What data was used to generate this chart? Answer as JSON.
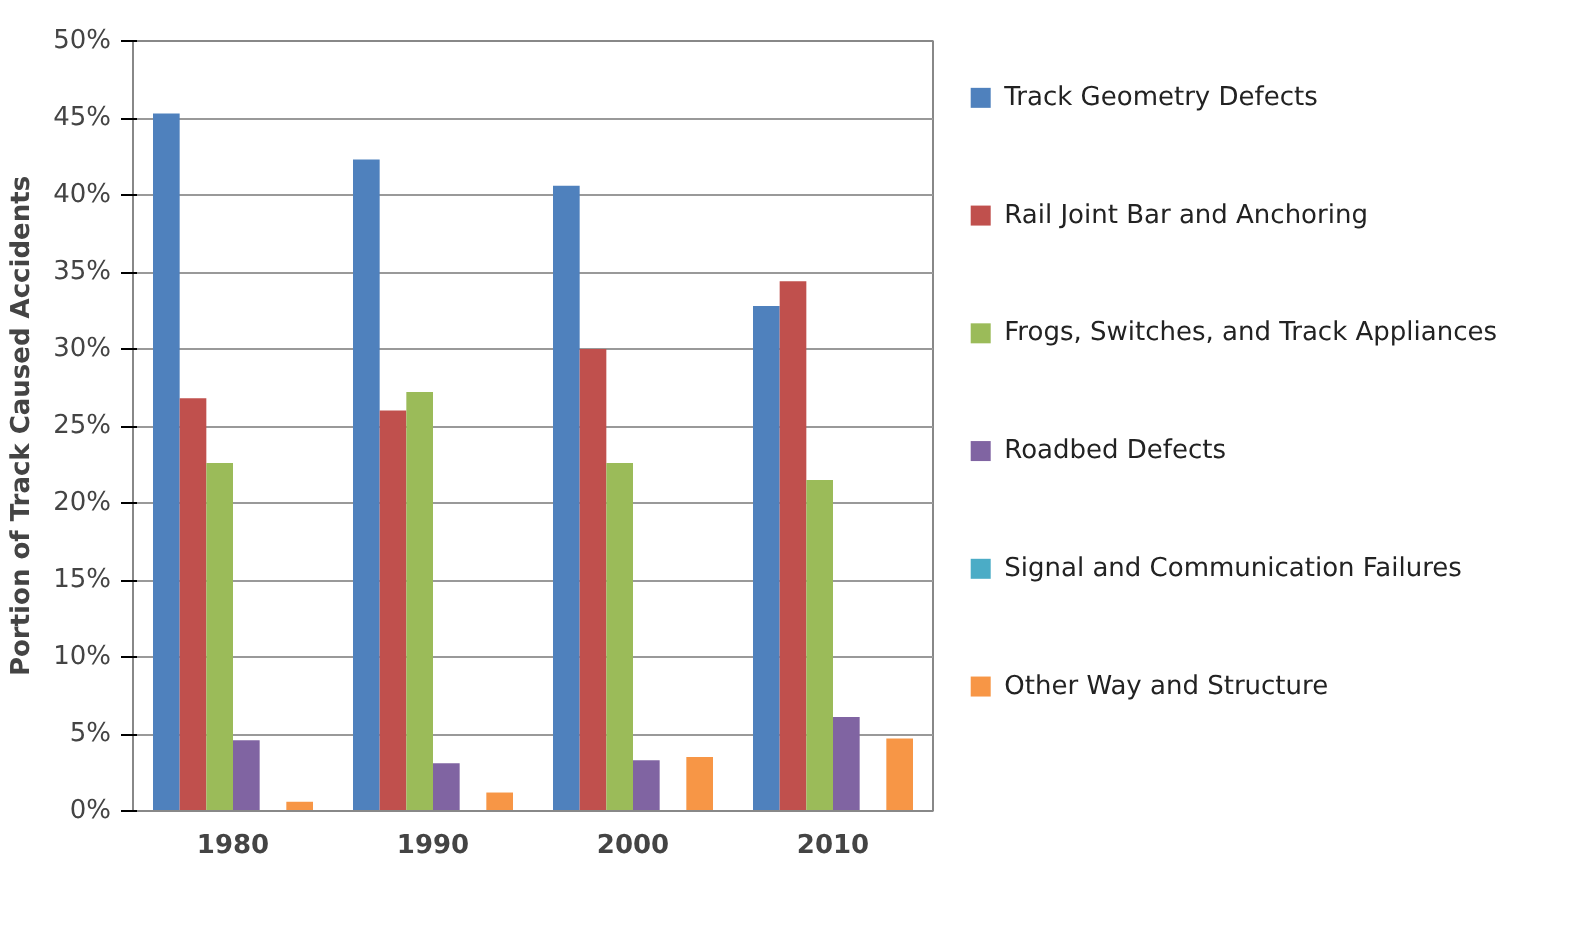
{
  "chart_data": {
    "type": "bar",
    "ylabel": "Portion of Track Caused Accidents",
    "categories": [
      "1980",
      "1990",
      "2000",
      "2010"
    ],
    "series": [
      {
        "name": "Track Geometry Defects",
        "color": "#4f81bd",
        "values": [
          45.3,
          42.3,
          40.6,
          32.8
        ]
      },
      {
        "name": "Rail Joint Bar and Anchoring",
        "color": "#c0504d",
        "values": [
          26.8,
          26.0,
          30.0,
          34.4
        ]
      },
      {
        "name": "Frogs, Switches, and Track Appliances",
        "color": "#9bbb59",
        "values": [
          22.6,
          27.2,
          22.6,
          21.5
        ]
      },
      {
        "name": "Roadbed Defects",
        "color": "#8064a2",
        "values": [
          4.6,
          3.1,
          3.3,
          6.1
        ]
      },
      {
        "name": "Signal and Communication Failures",
        "color": "#4bacc6",
        "values": [
          0,
          0,
          0,
          0
        ]
      },
      {
        "name": "Other Way and Structure",
        "color": "#f79646",
        "values": [
          0.6,
          1.2,
          3.5,
          4.7
        ]
      }
    ],
    "ylim": [
      0,
      50
    ],
    "yticks": [
      {
        "value": 0,
        "label": "0%"
      },
      {
        "value": 5,
        "label": "5%"
      },
      {
        "value": 10,
        "label": "10%"
      },
      {
        "value": 15,
        "label": "15%"
      },
      {
        "value": 20,
        "label": "20%"
      },
      {
        "value": 25,
        "label": "25%"
      },
      {
        "value": 30,
        "label": "30%"
      },
      {
        "value": 35,
        "label": "35%"
      },
      {
        "value": 40,
        "label": "40%"
      },
      {
        "value": 45,
        "label": "45%"
      },
      {
        "value": 50,
        "label": "50%"
      }
    ],
    "grid": "y",
    "legend": "right"
  }
}
